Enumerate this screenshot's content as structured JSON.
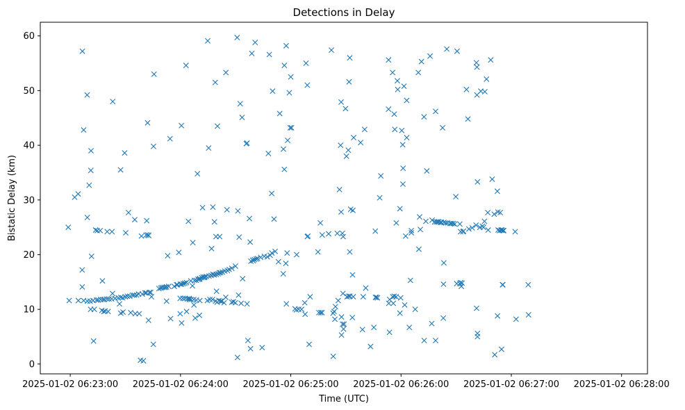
{
  "chart_data": {
    "type": "scatter",
    "title": "Detections in Delay",
    "xlabel": "Time (UTC)",
    "ylabel": "Bistatic Delay (km)",
    "marker": "x",
    "color": "#1f77b4",
    "x_unit": "seconds since 2025-01-02 06:23:00",
    "xlim": [
      -16.3,
      314.1
    ],
    "ylim": [
      -1.8,
      62.5
    ],
    "x_ticks": [
      {
        "value": 0,
        "label": "2025-01-02 06:23:00"
      },
      {
        "value": 60,
        "label": "2025-01-02 06:24:00"
      },
      {
        "value": 120,
        "label": "2025-01-02 06:25:00"
      },
      {
        "value": 180,
        "label": "2025-01-02 06:26:00"
      },
      {
        "value": 240,
        "label": "2025-01-02 06:27:00"
      },
      {
        "value": 300,
        "label": "2025-01-02 06:28:00"
      }
    ],
    "y_ticks": [
      {
        "value": 0,
        "label": "0"
      },
      {
        "value": 10,
        "label": "10"
      },
      {
        "value": 20,
        "label": "20"
      },
      {
        "value": 30,
        "label": "30"
      },
      {
        "value": 40,
        "label": "40"
      },
      {
        "value": 50,
        "label": "50"
      },
      {
        "value": 60,
        "label": "60"
      }
    ],
    "points": [
      [
        -1.1,
        25.0
      ],
      [
        -0.6,
        11.6
      ],
      [
        2.4,
        30.5
      ],
      [
        4.3,
        31.1
      ],
      [
        4.4,
        11.6
      ],
      [
        6.6,
        57.2
      ],
      [
        6.5,
        14.1
      ],
      [
        6.5,
        17.2
      ],
      [
        7.3,
        42.8
      ],
      [
        7.3,
        11.6
      ],
      [
        9.2,
        49.2
      ],
      [
        9.3,
        26.8
      ],
      [
        9.3,
        11.5
      ],
      [
        10.3,
        32.7
      ],
      [
        10.8,
        11.5
      ],
      [
        11.2,
        35.4
      ],
      [
        11.3,
        39.0
      ],
      [
        11.6,
        19.7
      ],
      [
        11.1,
        10.0
      ],
      [
        12.4,
        11.6
      ],
      [
        12.7,
        4.2
      ],
      [
        13.1,
        10.0
      ],
      [
        14.3,
        11.7
      ],
      [
        15.2,
        11.7
      ],
      [
        13.8,
        24.5
      ],
      [
        14.7,
        24.4
      ],
      [
        16.3,
        24.4
      ],
      [
        16.6,
        11.8
      ],
      [
        17.2,
        9.8
      ],
      [
        17.5,
        15.2
      ],
      [
        17.8,
        11.8
      ],
      [
        18.3,
        9.6
      ],
      [
        18.6,
        11.8
      ],
      [
        19.0,
        9.7
      ],
      [
        20.0,
        11.9
      ],
      [
        20.1,
        24.2
      ],
      [
        20.6,
        9.6
      ],
      [
        21.1,
        11.9
      ],
      [
        22.5,
        11.9
      ],
      [
        22.7,
        24.2
      ],
      [
        23.1,
        48.0
      ],
      [
        23.0,
        12.9
      ],
      [
        24.4,
        12.0
      ],
      [
        26.1,
        12.1
      ],
      [
        26.8,
        11.0
      ],
      [
        27.5,
        12.2
      ],
      [
        27.4,
        35.5
      ],
      [
        27.5,
        9.3
      ],
      [
        28.5,
        12.1
      ],
      [
        28.7,
        9.5
      ],
      [
        29.6,
        38.6
      ],
      [
        29.9,
        12.3
      ],
      [
        30.2,
        24.0
      ],
      [
        31.1,
        12.4
      ],
      [
        31.7,
        27.7
      ],
      [
        32.4,
        12.4
      ],
      [
        32.9,
        9.4
      ],
      [
        33.9,
        12.6
      ],
      [
        35.1,
        26.4
      ],
      [
        34.8,
        12.6
      ],
      [
        35.4,
        9.2
      ],
      [
        36.1,
        12.6
      ],
      [
        37.2,
        12.8
      ],
      [
        37.5,
        9.2
      ],
      [
        38.2,
        0.7
      ],
      [
        38.7,
        23.4
      ],
      [
        39.2,
        12.8
      ],
      [
        39.8,
        0.6
      ],
      [
        40.7,
        13.0
      ],
      [
        41.3,
        23.6
      ],
      [
        41.6,
        26.2
      ],
      [
        41.4,
        13.0
      ],
      [
        42.1,
        44.1
      ],
      [
        42.2,
        23.6
      ],
      [
        42.6,
        8.0
      ],
      [
        42.7,
        23.5
      ],
      [
        43.1,
        13.1
      ],
      [
        43.8,
        13.1
      ],
      [
        44.2,
        12.3
      ],
      [
        45.2,
        3.6
      ],
      [
        45.3,
        39.8
      ],
      [
        45.6,
        53.0
      ],
      [
        48.3,
        13.8
      ],
      [
        49.3,
        13.9
      ],
      [
        50.0,
        14.0
      ],
      [
        51.0,
        14.0
      ],
      [
        51.8,
        14.0
      ],
      [
        52.4,
        14.1
      ],
      [
        52.4,
        11.5
      ],
      [
        53.0,
        19.8
      ],
      [
        53.6,
        14.2
      ],
      [
        54.3,
        41.2
      ],
      [
        54.6,
        8.3
      ],
      [
        56.6,
        14.2
      ],
      [
        57.9,
        14.5
      ],
      [
        58.3,
        14.5
      ],
      [
        59.1,
        20.4
      ],
      [
        59.8,
        12.0
      ],
      [
        59.9,
        14.6
      ],
      [
        59.8,
        9.2
      ],
      [
        60.6,
        14.6
      ],
      [
        60.5,
        43.6
      ],
      [
        60.6,
        7.5
      ],
      [
        61.3,
        12.0
      ],
      [
        61.5,
        14.7
      ],
      [
        62.3,
        14.8
      ],
      [
        62.5,
        12.0
      ],
      [
        63.0,
        54.6
      ],
      [
        63.2,
        14.9
      ],
      [
        63.3,
        9.6
      ],
      [
        63.8,
        11.9
      ],
      [
        64.3,
        26.1
      ],
      [
        64.8,
        12.0
      ],
      [
        64.8,
        11.8
      ],
      [
        65.6,
        15.2
      ],
      [
        65.7,
        11.8
      ],
      [
        66.5,
        14.3
      ],
      [
        67.2,
        11.8
      ],
      [
        66.7,
        22.2
      ],
      [
        67.3,
        10.8
      ],
      [
        67.6,
        15.3
      ],
      [
        68.0,
        8.4
      ],
      [
        68.6,
        11.7
      ],
      [
        68.6,
        15.3
      ],
      [
        69.2,
        34.8
      ],
      [
        69.5,
        15.5
      ],
      [
        70.2,
        15.5
      ],
      [
        70.5,
        11.6
      ],
      [
        70.3,
        8.9
      ],
      [
        70.5,
        15.6
      ],
      [
        71.5,
        15.8
      ],
      [
        72.0,
        28.6
      ],
      [
        72.8,
        15.8
      ],
      [
        72.3,
        15.9
      ],
      [
        73.2,
        15.9
      ],
      [
        74.0,
        16.0
      ],
      [
        74.6,
        11.6
      ],
      [
        74.8,
        59.1
      ],
      [
        75.3,
        39.5
      ],
      [
        75.5,
        16.1
      ],
      [
        76.0,
        11.8
      ],
      [
        76.7,
        16.2
      ],
      [
        76.9,
        21.1
      ],
      [
        77.6,
        28.7
      ],
      [
        77.4,
        11.8
      ],
      [
        77.7,
        16.4
      ],
      [
        78.4,
        16.3
      ],
      [
        78.5,
        26.0
      ],
      [
        79.1,
        11.5
      ],
      [
        78.9,
        51.5
      ],
      [
        79.3,
        23.3
      ],
      [
        79.4,
        16.4
      ],
      [
        79.6,
        13.3
      ],
      [
        79.9,
        11.3
      ],
      [
        80.1,
        43.5
      ],
      [
        80.5,
        16.5
      ],
      [
        80.9,
        11.6
      ],
      [
        81.1,
        16.7
      ],
      [
        81.3,
        23.3
      ],
      [
        81.8,
        16.7
      ],
      [
        81.8,
        11.5
      ],
      [
        82.5,
        11.5
      ],
      [
        82.8,
        16.8
      ],
      [
        83.7,
        11.2
      ],
      [
        84.1,
        17.0
      ],
      [
        84.6,
        12.2
      ],
      [
        84.7,
        53.3
      ],
      [
        85.3,
        28.2
      ],
      [
        85.5,
        17.1
      ],
      [
        86.5,
        17.3
      ],
      [
        87.9,
        11.3
      ],
      [
        87.9,
        17.5
      ],
      [
        88.8,
        11.4
      ],
      [
        89.8,
        11.2
      ],
      [
        89.9,
        17.9
      ],
      [
        90.8,
        59.7
      ],
      [
        91.0,
        1.2
      ],
      [
        91.2,
        28.0
      ],
      [
        91.6,
        12.6
      ],
      [
        91.9,
        23.2
      ],
      [
        92.5,
        47.6
      ],
      [
        93.0,
        11.1
      ],
      [
        93.5,
        45.1
      ],
      [
        93.8,
        15.6
      ],
      [
        95.8,
        40.3
      ],
      [
        96.2,
        40.4
      ],
      [
        96.2,
        11.0
      ],
      [
        96.7,
        4.3
      ],
      [
        97.5,
        26.6
      ],
      [
        97.9,
        22.3
      ],
      [
        98.1,
        2.8
      ],
      [
        98.3,
        18.8
      ],
      [
        98.8,
        56.8
      ],
      [
        99.2,
        19.0
      ],
      [
        99.6,
        18.9
      ],
      [
        100.2,
        19.1
      ],
      [
        100.6,
        58.8
      ],
      [
        101.2,
        19.2
      ],
      [
        101.9,
        19.3
      ],
      [
        103.6,
        19.5
      ],
      [
        104.4,
        3.0
      ],
      [
        105.6,
        19.7
      ],
      [
        107.2,
        19.6
      ],
      [
        107.8,
        38.5
      ],
      [
        108.3,
        56.6
      ],
      [
        108.8,
        19.9
      ],
      [
        109.6,
        31.2
      ],
      [
        109.7,
        20.3
      ],
      [
        110.1,
        49.9
      ],
      [
        110.9,
        26.5
      ],
      [
        111.5,
        20.6
      ],
      [
        113.3,
        18.7
      ],
      [
        114.0,
        45.8
      ],
      [
        115.9,
        16.5
      ],
      [
        116.0,
        39.3
      ],
      [
        116.5,
        54.6
      ],
      [
        116.5,
        35.6
      ],
      [
        117.6,
        11.0
      ],
      [
        117.3,
        18.4
      ],
      [
        117.5,
        58.2
      ],
      [
        118.3,
        40.9
      ],
      [
        118.0,
        20.3
      ],
      [
        119.2,
        49.6
      ],
      [
        119.7,
        43.2
      ],
      [
        120.0,
        52.5
      ],
      [
        120.4,
        43.2
      ],
      [
        122.3,
        10.1
      ],
      [
        123.0,
        9.9
      ],
      [
        123.2,
        20.0
      ],
      [
        124.3,
        10.0
      ],
      [
        125.9,
        10.0
      ],
      [
        127.6,
        11.2
      ],
      [
        127.8,
        9.1
      ],
      [
        128.3,
        55.0
      ],
      [
        129.0,
        51.0
      ],
      [
        129.0,
        23.3
      ],
      [
        129.3,
        23.4
      ],
      [
        130.5,
        12.3
      ],
      [
        130.0,
        3.6
      ],
      [
        134.8,
        20.5
      ],
      [
        135.3,
        9.4
      ],
      [
        136.3,
        9.4
      ],
      [
        136.1,
        25.8
      ],
      [
        137.0,
        9.4
      ],
      [
        137.1,
        23.6
      ],
      [
        140.6,
        23.8
      ],
      [
        142.1,
        57.4
      ],
      [
        143.1,
        1.4
      ],
      [
        143.0,
        9.3
      ],
      [
        143.6,
        9.6
      ],
      [
        144.0,
        8.2
      ],
      [
        144.3,
        10.5
      ],
      [
        145.3,
        23.9
      ],
      [
        145.8,
        11.6
      ],
      [
        146.5,
        31.9
      ],
      [
        147.4,
        47.9
      ],
      [
        147.1,
        40.0
      ],
      [
        147.4,
        27.8
      ],
      [
        147.6,
        5.3
      ],
      [
        147.6,
        8.6
      ],
      [
        148.1,
        23.9
      ],
      [
        148.2,
        7.3
      ],
      [
        148.5,
        23.3
      ],
      [
        148.7,
        6.4
      ],
      [
        148.4,
        12.9
      ],
      [
        149.0,
        7.3
      ],
      [
        149.8,
        46.7
      ],
      [
        150.6,
        12.3
      ],
      [
        150.3,
        38.0
      ],
      [
        151.5,
        12.4
      ],
      [
        151.7,
        51.6
      ],
      [
        151.3,
        39.1
      ],
      [
        152.1,
        56.0
      ],
      [
        152.2,
        12.4
      ],
      [
        152.1,
        20.5
      ],
      [
        152.6,
        28.3
      ],
      [
        153.6,
        16.3
      ],
      [
        153.5,
        8.5
      ],
      [
        153.8,
        28.1
      ],
      [
        154.0,
        12.3
      ],
      [
        154.2,
        41.4
      ],
      [
        158.0,
        40.5
      ],
      [
        159.0,
        6.3
      ],
      [
        159.4,
        12.3
      ],
      [
        160.2,
        42.9
      ],
      [
        160.8,
        13.9
      ],
      [
        163.4,
        3.2
      ],
      [
        165.2,
        6.7
      ],
      [
        166.1,
        12.2
      ],
      [
        166.0,
        24.3
      ],
      [
        166.6,
        12.2
      ],
      [
        167.2,
        12.1
      ],
      [
        168.4,
        30.4
      ],
      [
        169.0,
        34.4
      ],
      [
        173.2,
        55.6
      ],
      [
        173.2,
        46.6
      ],
      [
        173.3,
        11.1
      ],
      [
        173.7,
        5.8
      ],
      [
        173.8,
        11.8
      ],
      [
        175.5,
        12.3
      ],
      [
        175.4,
        53.3
      ],
      [
        175.8,
        11.1
      ],
      [
        176.3,
        45.7
      ],
      [
        176.6,
        42.9
      ],
      [
        176.3,
        12.4
      ],
      [
        177.4,
        25.8
      ],
      [
        177.3,
        12.3
      ],
      [
        178.0,
        51.8
      ],
      [
        178.2,
        50.2
      ],
      [
        179.4,
        9.3
      ],
      [
        179.4,
        28.4
      ],
      [
        179.8,
        12.1
      ],
      [
        180.4,
        42.7
      ],
      [
        180.9,
        40.1
      ],
      [
        181.1,
        35.8
      ],
      [
        181.0,
        32.9
      ],
      [
        181.6,
        50.8
      ],
      [
        182.0,
        10.8
      ],
      [
        182.5,
        23.4
      ],
      [
        183.1,
        48.2
      ],
      [
        183.1,
        41.4
      ],
      [
        184.5,
        6.7
      ],
      [
        185.1,
        15.3
      ],
      [
        185.6,
        24.0
      ],
      [
        185.6,
        24.4
      ],
      [
        187.7,
        10.0
      ],
      [
        189.4,
        53.3
      ],
      [
        189.7,
        21.0
      ],
      [
        190.1,
        26.9
      ],
      [
        190.5,
        24.6
      ],
      [
        191.1,
        55.3
      ],
      [
        192.5,
        45.2
      ],
      [
        192.6,
        4.3
      ],
      [
        193.5,
        26.1
      ],
      [
        194.0,
        35.3
      ],
      [
        195.8,
        56.3
      ],
      [
        196.9,
        26.3
      ],
      [
        196.7,
        7.4
      ],
      [
        198.3,
        26.0
      ],
      [
        198.8,
        46.2
      ],
      [
        198.8,
        4.3
      ],
      [
        199.2,
        26.0
      ],
      [
        199.9,
        26.0
      ],
      [
        200.5,
        26.0
      ],
      [
        201.5,
        25.9
      ],
      [
        202.0,
        25.9
      ],
      [
        202.6,
        43.2
      ],
      [
        203.1,
        14.6
      ],
      [
        203.3,
        18.5
      ],
      [
        203.4,
        25.9
      ],
      [
        203.0,
        8.4
      ],
      [
        204.3,
        25.8
      ],
      [
        204.9,
        57.6
      ],
      [
        205.3,
        25.8
      ],
      [
        206.8,
        25.7
      ],
      [
        207.5,
        25.7
      ],
      [
        208.4,
        25.7
      ],
      [
        209.2,
        25.6
      ],
      [
        209.8,
        30.6
      ],
      [
        210.3,
        14.7
      ],
      [
        210.5,
        57.2
      ],
      [
        212.0,
        14.7
      ],
      [
        212.0,
        25.6
      ],
      [
        212.5,
        14.9
      ],
      [
        212.8,
        14.2
      ],
      [
        213.2,
        14.8
      ],
      [
        212.4,
        24.2
      ],
      [
        213.7,
        24.2
      ],
      [
        214.0,
        24.3
      ],
      [
        215.6,
        50.2
      ],
      [
        216.4,
        44.8
      ],
      [
        216.9,
        24.7
      ],
      [
        218.7,
        24.9
      ],
      [
        220.8,
        25.4
      ],
      [
        221.1,
        10.2
      ],
      [
        221.0,
        55.1
      ],
      [
        221.3,
        54.3
      ],
      [
        221.3,
        49.2
      ],
      [
        221.6,
        33.3
      ],
      [
        221.6,
        5.6
      ],
      [
        221.6,
        5.0
      ],
      [
        222.9,
        25.0
      ],
      [
        223.4,
        49.9
      ],
      [
        224.3,
        25.2
      ],
      [
        224.9,
        25.0
      ],
      [
        225.4,
        26.1
      ],
      [
        225.6,
        49.8
      ],
      [
        226.5,
        52.1
      ],
      [
        227.4,
        24.5
      ],
      [
        227.2,
        27.7
      ],
      [
        228.8,
        55.6
      ],
      [
        229.6,
        33.8
      ],
      [
        230.7,
        27.4
      ],
      [
        231.0,
        1.7
      ],
      [
        232.4,
        31.6
      ],
      [
        232.5,
        8.8
      ],
      [
        232.8,
        24.5
      ],
      [
        232.7,
        27.8
      ],
      [
        233.6,
        24.4
      ],
      [
        234.4,
        24.5
      ],
      [
        234.0,
        27.7
      ],
      [
        234.7,
        2.7
      ],
      [
        234.9,
        24.5
      ],
      [
        235.5,
        24.4
      ],
      [
        235.2,
        14.5
      ],
      [
        235.9,
        24.4
      ],
      [
        235.4,
        14.5
      ],
      [
        242.1,
        24.2
      ],
      [
        242.6,
        8.2
      ],
      [
        249.2,
        14.5
      ],
      [
        249.4,
        9.0
      ]
    ]
  }
}
